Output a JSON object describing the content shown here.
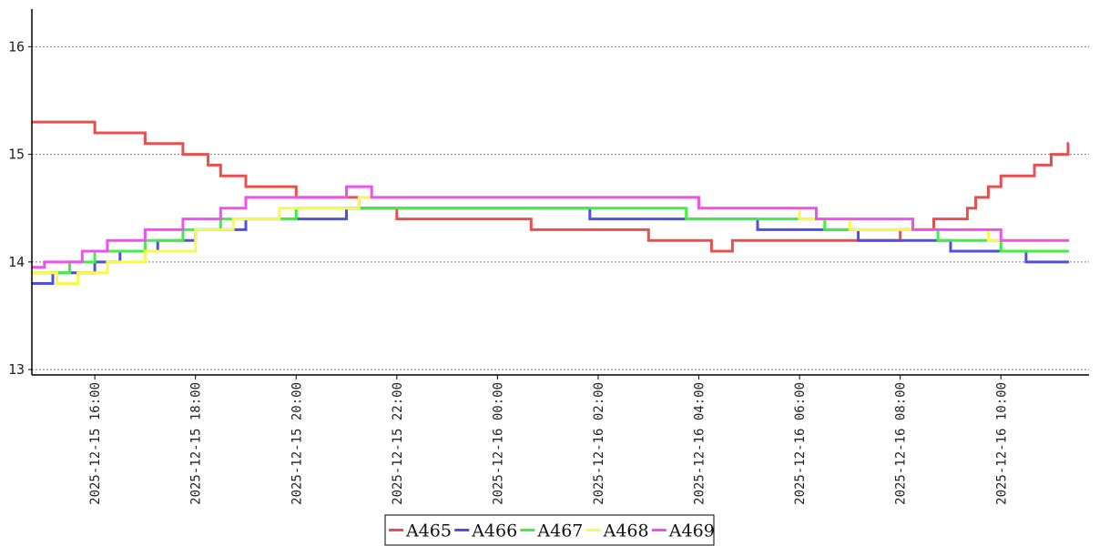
{
  "chart_data": {
    "type": "line",
    "title": "",
    "xlabel": "",
    "ylabel": "",
    "xlim": [
      "2025-12-15 14:45",
      "2025-12-16 11:45"
    ],
    "ylim": [
      12.95,
      16.35
    ],
    "yticks": [
      13,
      14,
      15,
      16
    ],
    "xticks": [
      "2025-12-15 16:00",
      "2025-12-15 18:00",
      "2025-12-15 20:00",
      "2025-12-15 22:00",
      "2025-12-16 00:00",
      "2025-12-16 02:00",
      "2025-12-16 04:00",
      "2025-12-16 06:00",
      "2025-12-16 08:00",
      "2025-12-16 10:00"
    ],
    "grid": "y-dotted",
    "step": true,
    "legend_position": "bottom",
    "series": [
      {
        "name": "A465",
        "color": "#e8504f",
        "x": [
          "2025-12-15 14:45",
          "2025-12-15 16:00",
          "2025-12-15 17:00",
          "2025-12-15 17:45",
          "2025-12-15 18:15",
          "2025-12-15 18:30",
          "2025-12-15 19:00",
          "2025-12-15 20:00",
          "2025-12-15 21:15",
          "2025-12-15 22:00",
          "2025-12-16 00:40",
          "2025-12-16 03:00",
          "2025-12-16 04:15",
          "2025-12-16 04:40",
          "2025-12-16 08:00",
          "2025-12-16 08:40",
          "2025-12-16 09:20",
          "2025-12-16 09:30",
          "2025-12-16 09:45",
          "2025-12-16 10:00",
          "2025-12-16 10:40",
          "2025-12-16 11:00",
          "2025-12-16 11:20"
        ],
        "values": [
          15.3,
          15.2,
          15.1,
          15.0,
          14.9,
          14.8,
          14.7,
          14.6,
          14.5,
          14.4,
          14.3,
          14.2,
          14.1,
          14.2,
          14.3,
          14.4,
          14.5,
          14.6,
          14.7,
          14.8,
          14.9,
          15.0,
          15.1
        ]
      },
      {
        "name": "A466",
        "color": "#4f50e0",
        "x": [
          "2025-12-15 14:45",
          "2025-12-15 15:10",
          "2025-12-15 16:00",
          "2025-12-15 16:30",
          "2025-12-15 17:15",
          "2025-12-15 18:00",
          "2025-12-15 19:00",
          "2025-12-15 21:00",
          "2025-12-16 01:50",
          "2025-12-16 05:10",
          "2025-12-16 07:10",
          "2025-12-16 08:00",
          "2025-12-16 09:00",
          "2025-12-16 10:30"
        ],
        "values": [
          13.8,
          13.9,
          14.0,
          14.1,
          14.2,
          14.3,
          14.4,
          14.5,
          14.4,
          14.3,
          14.2,
          14.2,
          14.1,
          14.0
        ]
      },
      {
        "name": "A467",
        "color": "#40f040",
        "x": [
          "2025-12-15 14:45",
          "2025-12-15 15:30",
          "2025-12-15 16:00",
          "2025-12-15 17:00",
          "2025-12-15 17:45",
          "2025-12-15 18:30",
          "2025-12-15 20:00",
          "2025-12-16 03:45",
          "2025-12-16 06:30",
          "2025-12-16 07:15",
          "2025-12-16 08:45",
          "2025-12-16 10:00"
        ],
        "values": [
          13.9,
          14.0,
          14.1,
          14.2,
          14.3,
          14.4,
          14.5,
          14.4,
          14.3,
          14.3,
          14.2,
          14.1
        ]
      },
      {
        "name": "A468",
        "color": "#f8f850",
        "x": [
          "2025-12-15 14:45",
          "2025-12-15 15:15",
          "2025-12-15 15:40",
          "2025-12-15 16:15",
          "2025-12-15 17:00",
          "2025-12-15 18:00",
          "2025-12-15 18:45",
          "2025-12-15 19:40",
          "2025-12-15 21:15",
          "2025-12-16 04:00",
          "2025-12-16 06:00",
          "2025-12-16 07:00",
          "2025-12-16 08:00",
          "2025-12-16 09:45"
        ],
        "values": [
          13.9,
          13.8,
          13.9,
          14.0,
          14.1,
          14.3,
          14.4,
          14.5,
          14.6,
          14.5,
          14.4,
          14.3,
          14.3,
          14.2
        ]
      },
      {
        "name": "A469",
        "color": "#f050f0",
        "x": [
          "2025-12-15 14:45",
          "2025-12-15 15:00",
          "2025-12-15 15:45",
          "2025-12-15 16:15",
          "2025-12-15 17:00",
          "2025-12-15 17:45",
          "2025-12-15 18:30",
          "2025-12-15 19:00",
          "2025-12-15 21:00",
          "2025-12-15 21:30",
          "2025-12-16 04:00",
          "2025-12-16 06:20",
          "2025-12-16 08:15",
          "2025-12-16 10:00"
        ],
        "values": [
          13.95,
          14.0,
          14.1,
          14.2,
          14.3,
          14.4,
          14.5,
          14.6,
          14.7,
          14.6,
          14.5,
          14.4,
          14.3,
          14.2
        ]
      }
    ]
  }
}
